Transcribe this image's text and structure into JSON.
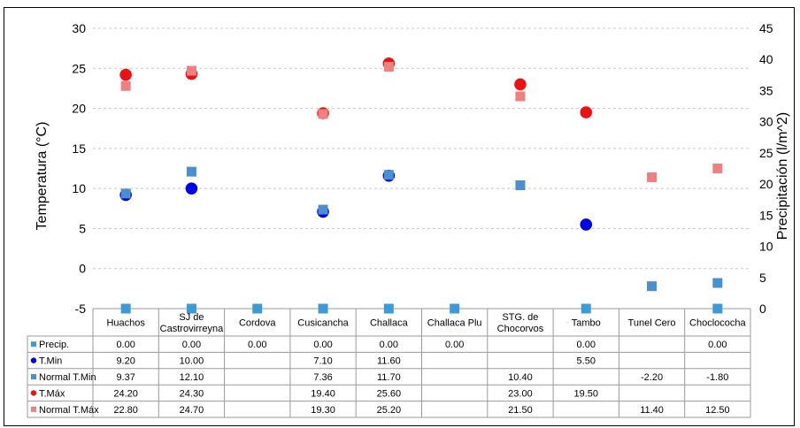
{
  "chart_data": {
    "type": "scatter",
    "title": "",
    "ylabel": "Temperatura (°C)",
    "y2label": "Precipitación (l/m^2)",
    "ylim": [
      -5,
      30
    ],
    "y2lim": [
      0,
      45
    ],
    "yticks": [
      "30",
      "25",
      "20",
      "15",
      "10",
      "5",
      "0",
      "-5"
    ],
    "y2ticks": [
      "45",
      "40",
      "35",
      "30",
      "25",
      "20",
      "15",
      "10",
      "5",
      "0"
    ],
    "grid": true,
    "categories": [
      "Huachos",
      "SJ de Castrovirreyna",
      "Cordova",
      "Cusicancha",
      "Challaca",
      "Challaca Plu",
      "STG. de Chocorvos",
      "Tambo",
      "Tunel Cero",
      "Choclococha"
    ],
    "series": [
      {
        "name": "Precip.",
        "axis": "right",
        "marker": "square",
        "color": "#3d9ad6",
        "values": [
          0,
          0,
          0,
          0,
          0,
          0,
          null,
          0,
          null,
          0
        ],
        "labels": [
          "0.00",
          "0.00",
          "0.00",
          "0.00",
          "0.00",
          "0.00",
          "",
          "0.00",
          "",
          "0.00"
        ]
      },
      {
        "name": "T.Min",
        "axis": "left",
        "marker": "circle",
        "color": "#0000e6",
        "values": [
          9.2,
          10.0,
          null,
          7.1,
          11.6,
          null,
          null,
          5.5,
          null,
          null
        ],
        "labels": [
          "9.20",
          "10.00",
          "",
          "7.10",
          "11.60",
          "",
          "",
          "5.50",
          "",
          ""
        ]
      },
      {
        "name": "Normal T.Min",
        "axis": "left",
        "marker": "square",
        "color": "#4a8fd0",
        "values": [
          9.37,
          12.1,
          null,
          7.36,
          11.7,
          null,
          10.4,
          null,
          -2.2,
          -1.8
        ],
        "labels": [
          "9.37",
          "12.10",
          "",
          "7.36",
          "11.70",
          "",
          "10.40",
          "",
          "-2.20",
          "-1.80"
        ]
      },
      {
        "name": "T.Máx",
        "axis": "left",
        "marker": "circle",
        "color": "#ee1111",
        "values": [
          24.2,
          24.3,
          null,
          19.4,
          25.6,
          null,
          23.0,
          19.5,
          null,
          null
        ],
        "labels": [
          "24.20",
          "24.30",
          "",
          "19.40",
          "25.60",
          "",
          "23.00",
          "19.50",
          "",
          ""
        ]
      },
      {
        "name": "Normal T.Máx",
        "axis": "left",
        "marker": "square",
        "color": "#f07f7f",
        "values": [
          22.8,
          24.7,
          null,
          19.3,
          25.2,
          null,
          21.5,
          null,
          11.4,
          12.5
        ],
        "labels": [
          "22.80",
          "24.70",
          "",
          "19.30",
          "25.20",
          "",
          "21.50",
          "",
          "11.40",
          "12.50"
        ]
      }
    ]
  }
}
